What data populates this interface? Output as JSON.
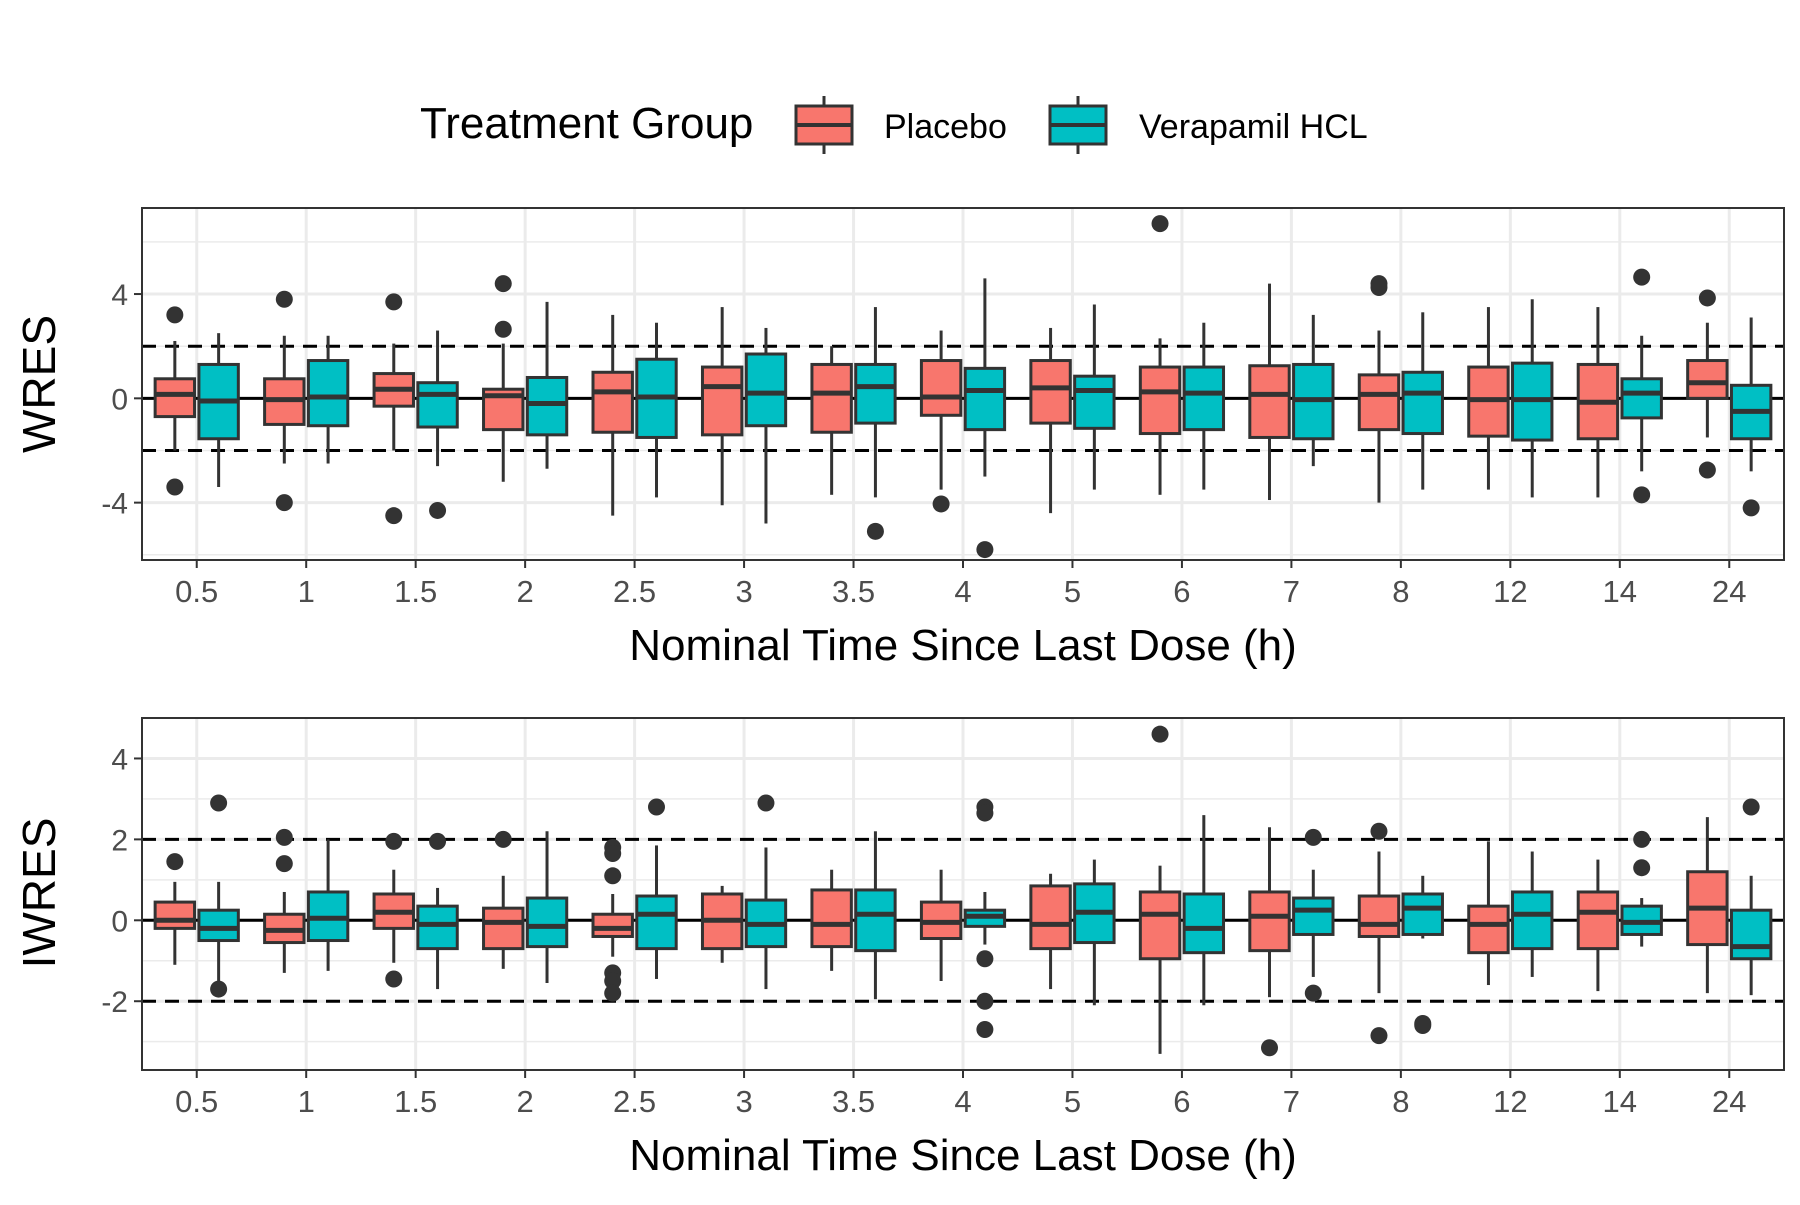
{
  "legend": {
    "title": "Treatment Group",
    "position": "top",
    "entries": [
      {
        "label": "Placebo",
        "color": "#F8766D"
      },
      {
        "label": "Verapamil HCL",
        "color": "#00BFC4"
      }
    ]
  },
  "colors": {
    "placebo": "#F8766D",
    "verapamil": "#00BFC4",
    "box_outline": "#333333",
    "grid": "#EBEBEB",
    "reference_lines": "#000000"
  },
  "chart_data": [
    {
      "type": "boxplot",
      "ylabel": "WRES",
      "xlabel": "Nominal Time Since Last Dose (h)",
      "categories": [
        "0.5",
        "1",
        "1.5",
        "2",
        "2.5",
        "3",
        "3.5",
        "4",
        "5",
        "6",
        "7",
        "8",
        "12",
        "14",
        "24"
      ],
      "ylim": [
        -6.2,
        7.3
      ],
      "yticks": [
        -4,
        0,
        4
      ],
      "reference_lines": {
        "solid": [
          0
        ],
        "dashed": [
          -2,
          2
        ]
      },
      "grid": true,
      "series": [
        {
          "name": "Placebo",
          "boxes": [
            {
              "whisker_low": -2.0,
              "q1": -0.7,
              "median": 0.15,
              "q3": 0.75,
              "whisker_high": 2.2,
              "outliers": [
                3.2,
                -3.4
              ]
            },
            {
              "whisker_low": -2.5,
              "q1": -1.0,
              "median": -0.05,
              "q3": 0.75,
              "whisker_high": 2.4,
              "outliers": [
                3.8,
                -4.0
              ]
            },
            {
              "whisker_low": -2.0,
              "q1": -0.3,
              "median": 0.35,
              "q3": 0.95,
              "whisker_high": 2.1,
              "outliers": [
                3.7,
                -4.5
              ]
            },
            {
              "whisker_low": -3.2,
              "q1": -1.2,
              "median": 0.1,
              "q3": 0.35,
              "whisker_high": 2.1,
              "outliers": [
                4.4,
                2.65
              ]
            },
            {
              "whisker_low": -4.5,
              "q1": -1.3,
              "median": 0.25,
              "q3": 1.0,
              "whisker_high": 3.2,
              "outliers": []
            },
            {
              "whisker_low": -4.1,
              "q1": -1.4,
              "median": 0.45,
              "q3": 1.2,
              "whisker_high": 3.5,
              "outliers": []
            },
            {
              "whisker_low": -3.7,
              "q1": -1.3,
              "median": 0.2,
              "q3": 1.3,
              "whisker_high": 2.0,
              "outliers": []
            },
            {
              "whisker_low": -3.5,
              "q1": -0.65,
              "median": 0.05,
              "q3": 1.45,
              "whisker_high": 2.6,
              "outliers": [
                -4.05
              ]
            },
            {
              "whisker_low": -4.4,
              "q1": -0.95,
              "median": 0.4,
              "q3": 1.45,
              "whisker_high": 2.7,
              "outliers": []
            },
            {
              "whisker_low": -3.7,
              "q1": -1.35,
              "median": 0.25,
              "q3": 1.2,
              "whisker_high": 2.3,
              "outliers": [
                6.7
              ]
            },
            {
              "whisker_low": -3.9,
              "q1": -1.5,
              "median": 0.15,
              "q3": 1.25,
              "whisker_high": 4.4,
              "outliers": []
            },
            {
              "whisker_low": -4.0,
              "q1": -1.2,
              "median": 0.15,
              "q3": 0.9,
              "whisker_high": 2.6,
              "outliers": [
                4.4,
                4.25
              ]
            },
            {
              "whisker_low": -3.5,
              "q1": -1.45,
              "median": -0.05,
              "q3": 1.2,
              "whisker_high": 3.5,
              "outliers": []
            },
            {
              "whisker_low": -3.8,
              "q1": -1.55,
              "median": -0.15,
              "q3": 1.3,
              "whisker_high": 3.5,
              "outliers": []
            },
            {
              "whisker_low": -1.5,
              "q1": 0.0,
              "median": 0.6,
              "q3": 1.45,
              "whisker_high": 2.9,
              "outliers": [
                3.85,
                -2.75
              ]
            }
          ]
        },
        {
          "name": "Verapamil HCL",
          "boxes": [
            {
              "whisker_low": -3.4,
              "q1": -1.55,
              "median": -0.1,
              "q3": 1.3,
              "whisker_high": 2.5,
              "outliers": []
            },
            {
              "whisker_low": -2.5,
              "q1": -1.05,
              "median": 0.05,
              "q3": 1.45,
              "whisker_high": 2.4,
              "outliers": []
            },
            {
              "whisker_low": -2.6,
              "q1": -1.1,
              "median": 0.15,
              "q3": 0.6,
              "whisker_high": 2.6,
              "outliers": [
                -4.3
              ]
            },
            {
              "whisker_low": -2.7,
              "q1": -1.4,
              "median": -0.2,
              "q3": 0.8,
              "whisker_high": 3.7,
              "outliers": []
            },
            {
              "whisker_low": -3.8,
              "q1": -1.5,
              "median": 0.05,
              "q3": 1.5,
              "whisker_high": 2.9,
              "outliers": []
            },
            {
              "whisker_low": -4.8,
              "q1": -1.05,
              "median": 0.2,
              "q3": 1.7,
              "whisker_high": 2.7,
              "outliers": []
            },
            {
              "whisker_low": -3.8,
              "q1": -0.95,
              "median": 0.45,
              "q3": 1.3,
              "whisker_high": 3.5,
              "outliers": [
                -5.1
              ]
            },
            {
              "whisker_low": -3.0,
              "q1": -1.2,
              "median": 0.3,
              "q3": 1.15,
              "whisker_high": 4.6,
              "outliers": [
                -5.8
              ]
            },
            {
              "whisker_low": -3.5,
              "q1": -1.15,
              "median": 0.3,
              "q3": 0.85,
              "whisker_high": 3.6,
              "outliers": []
            },
            {
              "whisker_low": -3.5,
              "q1": -1.2,
              "median": 0.2,
              "q3": 1.2,
              "whisker_high": 2.9,
              "outliers": []
            },
            {
              "whisker_low": -2.6,
              "q1": -1.55,
              "median": -0.05,
              "q3": 1.3,
              "whisker_high": 3.2,
              "outliers": []
            },
            {
              "whisker_low": -3.5,
              "q1": -1.35,
              "median": 0.2,
              "q3": 1.0,
              "whisker_high": 3.3,
              "outliers": []
            },
            {
              "whisker_low": -3.8,
              "q1": -1.6,
              "median": -0.05,
              "q3": 1.35,
              "whisker_high": 3.8,
              "outliers": []
            },
            {
              "whisker_low": -2.8,
              "q1": -0.75,
              "median": 0.2,
              "q3": 0.75,
              "whisker_high": 2.4,
              "outliers": [
                4.65,
                -3.7
              ]
            },
            {
              "whisker_low": -2.8,
              "q1": -1.55,
              "median": -0.5,
              "q3": 0.5,
              "whisker_high": 3.1,
              "outliers": [
                -4.2
              ]
            }
          ]
        }
      ]
    },
    {
      "type": "boxplot",
      "ylabel": "IWRES",
      "xlabel": "Nominal Time Since Last Dose (h)",
      "categories": [
        "0.5",
        "1",
        "1.5",
        "2",
        "2.5",
        "3",
        "3.5",
        "4",
        "5",
        "6",
        "7",
        "8",
        "12",
        "14",
        "24"
      ],
      "ylim": [
        -3.7,
        5.0
      ],
      "yticks": [
        -2,
        0,
        2,
        4
      ],
      "reference_lines": {
        "solid": [
          0
        ],
        "dashed": [
          -2,
          2
        ]
      },
      "grid": true,
      "series": [
        {
          "name": "Placebo",
          "boxes": [
            {
              "whisker_low": -1.1,
              "q1": -0.2,
              "median": 0.0,
              "q3": 0.45,
              "whisker_high": 0.95,
              "outliers": [
                1.45
              ]
            },
            {
              "whisker_low": -1.3,
              "q1": -0.55,
              "median": -0.25,
              "q3": 0.15,
              "whisker_high": 0.7,
              "outliers": [
                2.05,
                1.4
              ]
            },
            {
              "whisker_low": -1.05,
              "q1": -0.2,
              "median": 0.2,
              "q3": 0.65,
              "whisker_high": 1.25,
              "outliers": [
                1.95,
                -1.45
              ]
            },
            {
              "whisker_low": -1.2,
              "q1": -0.7,
              "median": -0.05,
              "q3": 0.3,
              "whisker_high": 1.1,
              "outliers": [
                2.0
              ]
            },
            {
              "whisker_low": -0.9,
              "q1": -0.4,
              "median": -0.2,
              "q3": 0.15,
              "whisker_high": 0.65,
              "outliers": [
                1.8,
                1.65,
                1.1,
                -1.3,
                -1.5,
                -1.8
              ]
            },
            {
              "whisker_low": -1.05,
              "q1": -0.7,
              "median": 0.0,
              "q3": 0.65,
              "whisker_high": 0.85,
              "outliers": []
            },
            {
              "whisker_low": -1.25,
              "q1": -0.65,
              "median": -0.1,
              "q3": 0.75,
              "whisker_high": 1.25,
              "outliers": []
            },
            {
              "whisker_low": -1.5,
              "q1": -0.45,
              "median": -0.05,
              "q3": 0.45,
              "whisker_high": 1.25,
              "outliers": []
            },
            {
              "whisker_low": -1.7,
              "q1": -0.7,
              "median": -0.1,
              "q3": 0.85,
              "whisker_high": 1.15,
              "outliers": []
            },
            {
              "whisker_low": -3.3,
              "q1": -0.95,
              "median": 0.15,
              "q3": 0.7,
              "whisker_high": 1.35,
              "outliers": [
                4.6
              ]
            },
            {
              "whisker_low": -1.9,
              "q1": -0.75,
              "median": 0.1,
              "q3": 0.7,
              "whisker_high": 2.3,
              "outliers": [
                -3.15
              ]
            },
            {
              "whisker_low": -1.8,
              "q1": -0.4,
              "median": -0.1,
              "q3": 0.6,
              "whisker_high": 1.7,
              "outliers": [
                2.2,
                -2.85
              ]
            },
            {
              "whisker_low": -1.6,
              "q1": -0.8,
              "median": -0.1,
              "q3": 0.35,
              "whisker_high": 1.95,
              "outliers": []
            },
            {
              "whisker_low": -1.75,
              "q1": -0.7,
              "median": 0.2,
              "q3": 0.7,
              "whisker_high": 1.5,
              "outliers": []
            },
            {
              "whisker_low": -1.8,
              "q1": -0.6,
              "median": 0.3,
              "q3": 1.2,
              "whisker_high": 2.55,
              "outliers": []
            }
          ]
        },
        {
          "name": "Verapamil HCL",
          "boxes": [
            {
              "whisker_low": -1.5,
              "q1": -0.5,
              "median": -0.2,
              "q3": 0.25,
              "whisker_high": 0.95,
              "outliers": [
                2.9,
                -1.7
              ]
            },
            {
              "whisker_low": -1.25,
              "q1": -0.5,
              "median": 0.05,
              "q3": 0.7,
              "whisker_high": 2.0,
              "outliers": []
            },
            {
              "whisker_low": -1.7,
              "q1": -0.7,
              "median": -0.1,
              "q3": 0.35,
              "whisker_high": 0.8,
              "outliers": [
                1.95
              ]
            },
            {
              "whisker_low": -1.55,
              "q1": -0.65,
              "median": -0.15,
              "q3": 0.55,
              "whisker_high": 2.2,
              "outliers": []
            },
            {
              "whisker_low": -1.45,
              "q1": -0.7,
              "median": 0.15,
              "q3": 0.6,
              "whisker_high": 1.85,
              "outliers": [
                2.8
              ]
            },
            {
              "whisker_low": -1.7,
              "q1": -0.65,
              "median": -0.1,
              "q3": 0.5,
              "whisker_high": 1.8,
              "outliers": [
                2.9
              ]
            },
            {
              "whisker_low": -1.95,
              "q1": -0.75,
              "median": 0.15,
              "q3": 0.75,
              "whisker_high": 2.2,
              "outliers": []
            },
            {
              "whisker_low": -0.6,
              "q1": -0.15,
              "median": 0.1,
              "q3": 0.25,
              "whisker_high": 0.7,
              "outliers": [
                2.8,
                2.65,
                -0.95,
                -2.0,
                -2.7
              ]
            },
            {
              "whisker_low": -2.1,
              "q1": -0.55,
              "median": 0.2,
              "q3": 0.9,
              "whisker_high": 1.5,
              "outliers": []
            },
            {
              "whisker_low": -2.1,
              "q1": -0.8,
              "median": -0.2,
              "q3": 0.65,
              "whisker_high": 2.6,
              "outliers": []
            },
            {
              "whisker_low": -1.4,
              "q1": -0.35,
              "median": 0.25,
              "q3": 0.55,
              "whisker_high": 1.25,
              "outliers": [
                2.05,
                -1.8
              ]
            },
            {
              "whisker_low": -0.45,
              "q1": -0.35,
              "median": 0.3,
              "q3": 0.65,
              "whisker_high": 1.1,
              "outliers": [
                -2.55,
                -2.6
              ]
            },
            {
              "whisker_low": -1.4,
              "q1": -0.7,
              "median": 0.15,
              "q3": 0.7,
              "whisker_high": 1.7,
              "outliers": []
            },
            {
              "whisker_low": -0.65,
              "q1": -0.35,
              "median": -0.05,
              "q3": 0.35,
              "whisker_high": 0.55,
              "outliers": [
                2.0,
                1.3
              ]
            },
            {
              "whisker_low": -1.85,
              "q1": -0.95,
              "median": -0.65,
              "q3": 0.25,
              "whisker_high": 1.1,
              "outliers": [
                2.8
              ]
            }
          ]
        }
      ]
    }
  ]
}
